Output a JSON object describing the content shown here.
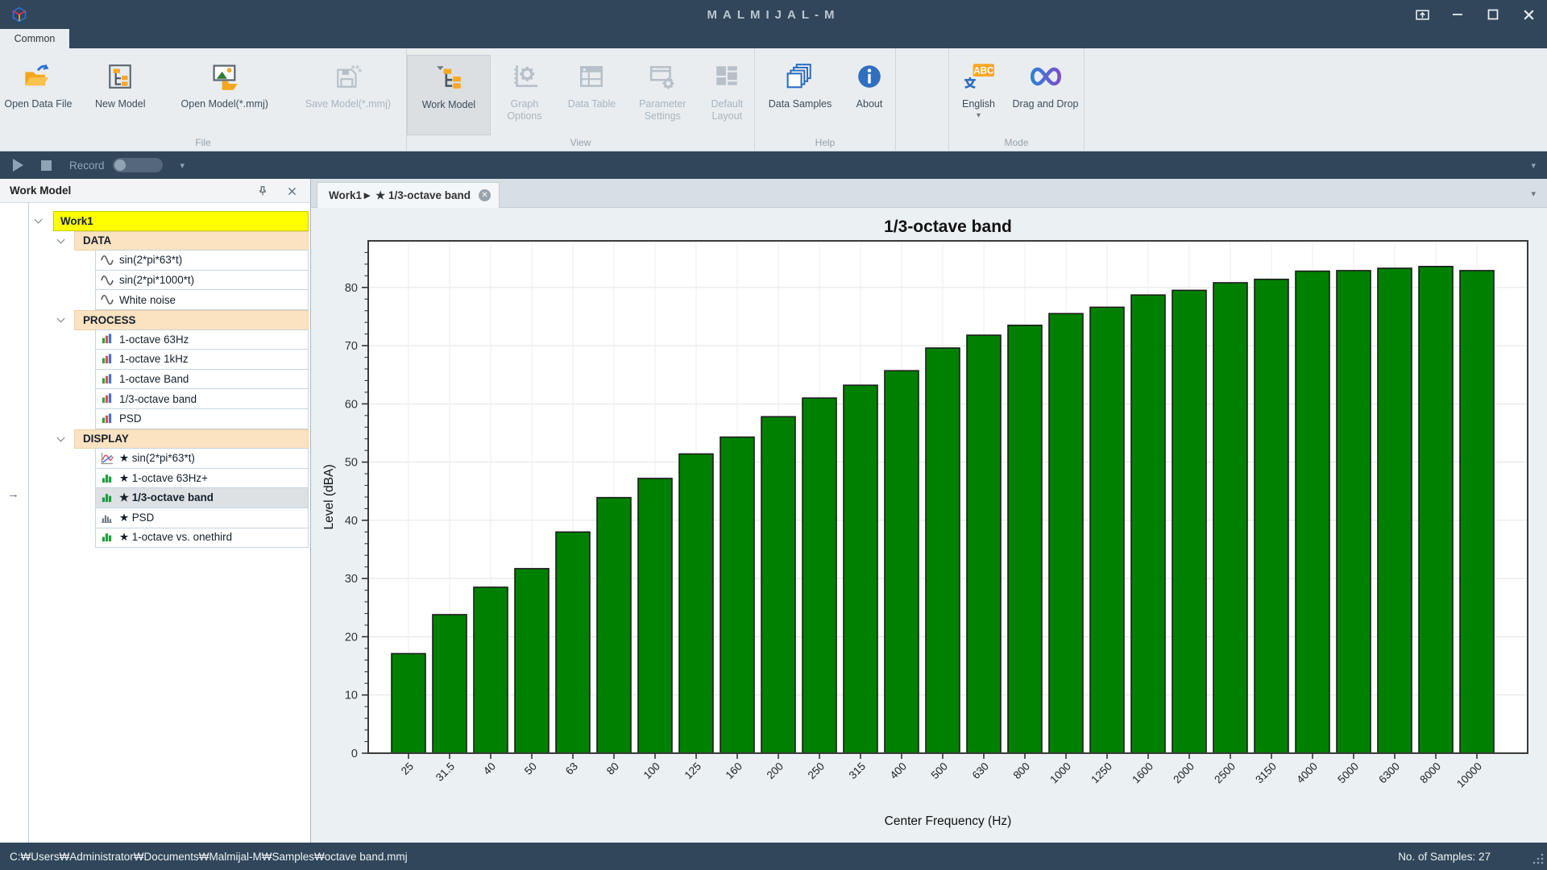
{
  "titlebar": {
    "title": "MALMIJAL-M"
  },
  "ribbon": {
    "tab": "Common",
    "groups": [
      {
        "label": "File",
        "buttons": [
          {
            "label": "Open Data File"
          },
          {
            "label": "New Model"
          },
          {
            "label": "Open Model(*.mmj)"
          },
          {
            "label": "Save Model(*.mmj)"
          }
        ]
      },
      {
        "label": "View",
        "buttons": [
          {
            "label": "Work Model"
          },
          {
            "label": "Graph Options"
          },
          {
            "label": "Data Table"
          },
          {
            "label": "Parameter Settings"
          },
          {
            "label": "Default Layout"
          }
        ]
      },
      {
        "label": "Help",
        "buttons": [
          {
            "label": "Data Samples"
          },
          {
            "label": "About"
          }
        ]
      },
      {
        "label": "Mode",
        "buttons": [
          {
            "label": "English"
          },
          {
            "label": "Drag and Drop"
          }
        ]
      }
    ]
  },
  "record_bar": {
    "label": "Record"
  },
  "work_model_panel": {
    "title": "Work Model",
    "root": "Work1",
    "sections": [
      {
        "label": "DATA",
        "items": [
          {
            "label": "sin(2*pi*63*t)",
            "icon": "sine"
          },
          {
            "label": "sin(2*pi*1000*t)",
            "icon": "sine"
          },
          {
            "label": "White noise",
            "icon": "sine"
          }
        ]
      },
      {
        "label": "PROCESS",
        "items": [
          {
            "label": "1-octave 63Hz",
            "icon": "bars-color"
          },
          {
            "label": "1-octave 1kHz",
            "icon": "bars-color"
          },
          {
            "label": "1-octave Band",
            "icon": "bars-color"
          },
          {
            "label": "1/3-octave band",
            "icon": "bars-color"
          },
          {
            "label": "PSD",
            "icon": "bars-color"
          }
        ]
      },
      {
        "label": "DISPLAY",
        "items": [
          {
            "label": "★ sin(2*pi*63*t)",
            "icon": "line-chart"
          },
          {
            "label": "★ 1-octave 63Hz+",
            "icon": "bars-green"
          },
          {
            "label": "★ 1/3-octave band",
            "icon": "bars-green",
            "selected": true
          },
          {
            "label": "★ PSD",
            "icon": "bars-gray"
          },
          {
            "label": "★ 1-octave vs. onethird",
            "icon": "bars-green"
          }
        ]
      }
    ]
  },
  "document": {
    "tab_title": "Work1► ★ 1/3-octave band"
  },
  "chart_data": {
    "type": "bar",
    "title": "1/3-octave band",
    "xlabel": "Center Frequency (Hz)",
    "ylabel": "Level (dBA)",
    "categories": [
      "25",
      "31.5",
      "40",
      "50",
      "63",
      "80",
      "100",
      "125",
      "160",
      "200",
      "250",
      "315",
      "400",
      "500",
      "630",
      "800",
      "1000",
      "1250",
      "1600",
      "2000",
      "2500",
      "3150",
      "4000",
      "5000",
      "6300",
      "8000",
      "10000"
    ],
    "values": [
      17.1,
      23.8,
      28.5,
      31.7,
      38.0,
      43.9,
      47.2,
      51.4,
      54.3,
      57.8,
      61.0,
      63.2,
      65.7,
      69.6,
      71.8,
      73.5,
      75.5,
      76.6,
      78.7,
      79.5,
      80.8,
      81.4,
      82.8,
      82.9,
      83.3,
      83.6,
      82.9
    ],
    "bar_color": "#008000",
    "bar_edge_color": "#1c1c1c",
    "ylim": [
      0,
      88
    ],
    "yticks": [
      0,
      10,
      20,
      30,
      40,
      50,
      60,
      70,
      80
    ],
    "grid": true,
    "legend": null
  },
  "status_bar": {
    "path": "C:₩Users₩Administrator₩Documents₩Malmijal-M₩Samples₩octave band.mmj",
    "samples_label": "No. of Samples: 27"
  }
}
